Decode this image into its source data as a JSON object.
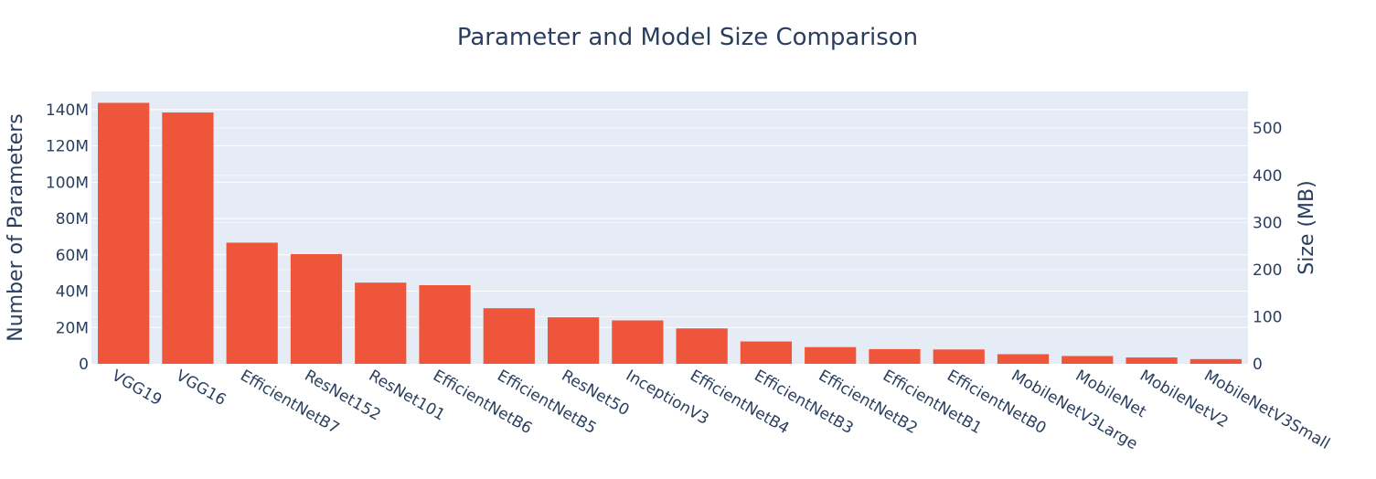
{
  "chart_data": {
    "type": "bar",
    "title": "Parameter and Model Size Comparison",
    "ylabel": "Number of Parameters",
    "y2label": "Size (MB)",
    "xlabel": "",
    "categories": [
      "VGG19",
      "VGG16",
      "EfficientNetB7",
      "ResNet152",
      "ResNet101",
      "EfficientNetB6",
      "EfficientNetB5",
      "ResNet50",
      "InceptionV3",
      "EfficientNetB4",
      "EfficientNetB3",
      "EfficientNetB2",
      "EfficientNetB1",
      "EfficientNetB0",
      "MobileNetV3Large",
      "MobileNet",
      "MobileNetV2",
      "MobileNetV3Small"
    ],
    "series": [
      {
        "values": [
          143700000,
          138400000,
          66700000,
          60400000,
          44700000,
          43300000,
          30600000,
          25600000,
          23900000,
          19500000,
          12300000,
          9200000,
          8100000,
          7900000,
          5300000,
          4300000,
          3500000,
          2600000
        ],
        "color": "#ef553b"
      }
    ],
    "ylim": [
      0,
      150000000
    ],
    "yticks": [
      0,
      20000000,
      40000000,
      60000000,
      80000000,
      100000000,
      120000000,
      140000000
    ],
    "ytick_labels": [
      "0",
      "20M",
      "40M",
      "60M",
      "80M",
      "100M",
      "120M",
      "140M"
    ],
    "y2lim": [
      0,
      578
    ],
    "y2ticks": [
      0,
      100,
      200,
      300,
      400,
      500
    ],
    "y2tick_labels": [
      "0",
      "100",
      "200",
      "300",
      "400",
      "500"
    ],
    "grid": true,
    "legend": "none",
    "plot_bg": "#e5ecf6",
    "text_color": "#2a3f5f"
  }
}
